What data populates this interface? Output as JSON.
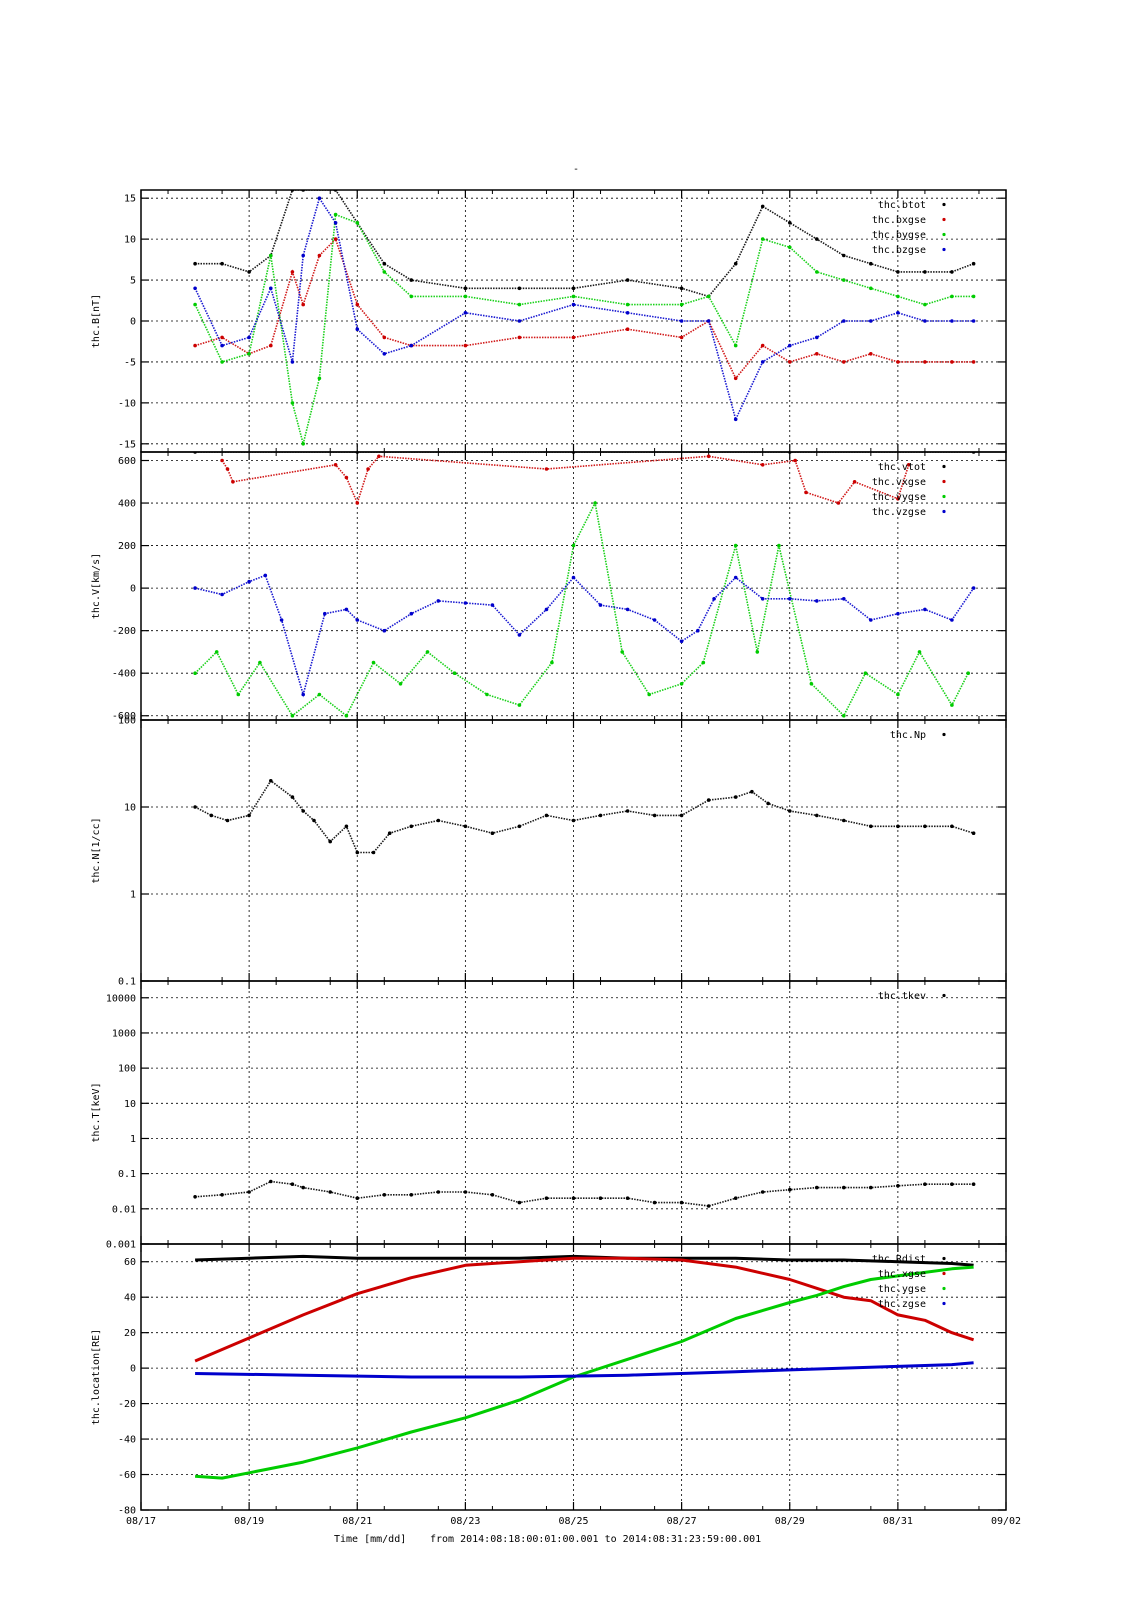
{
  "figure": {
    "title": "-",
    "footer": {
      "time_label": "Time [mm/dd]",
      "range_text": "from 2014:08:18:00:01:00.001  to  2014:08:31:23:59:00.001"
    }
  },
  "colors": {
    "black": "#000000",
    "red": "#cc0000",
    "green": "#00cc00",
    "blue": "#0000cc",
    "grid": "#000000"
  },
  "chart_data": [
    {
      "type": "scatter",
      "ylabel": "thc.B[nT]",
      "scale": "linear",
      "xlim": [
        0,
        16
      ],
      "ylim": [
        -16,
        16
      ],
      "x_ticks": [
        0,
        2,
        4,
        6,
        8,
        10,
        12,
        14,
        16
      ],
      "y_ticks": [
        -15,
        -10,
        -5,
        0,
        5,
        10,
        15
      ],
      "y_tick_labels": [
        "-15",
        "-10",
        "-5",
        "0",
        "5",
        "10",
        "15"
      ],
      "legend": [
        "thc.btot",
        "thc.bxgse",
        "thc.bygse",
        "thc.bzgse"
      ],
      "series": [
        {
          "name": "thc.btot",
          "color": "black",
          "x": [
            1,
            1.5,
            2,
            2.4,
            2.8,
            3,
            3.6,
            4,
            4.5,
            5,
            6,
            7,
            8,
            9,
            10,
            10.5,
            11,
            11.5,
            12,
            12.5,
            13,
            13.5,
            14,
            14.5,
            15,
            15.4
          ],
          "y": [
            7,
            7,
            6,
            8,
            16,
            16,
            16,
            12,
            7,
            5,
            4,
            4,
            4,
            5,
            4,
            3,
            7,
            14,
            12,
            10,
            8,
            7,
            6,
            6,
            6,
            7
          ]
        },
        {
          "name": "thc.bxgse",
          "color": "red",
          "x": [
            1,
            1.5,
            2,
            2.4,
            2.8,
            3,
            3.3,
            3.6,
            4,
            4.5,
            5,
            6,
            7,
            8,
            9,
            10,
            10.5,
            11,
            11.5,
            12,
            12.5,
            13,
            13.5,
            14,
            14.5,
            15,
            15.4
          ],
          "y": [
            -3,
            -2,
            -4,
            -3,
            6,
            2,
            8,
            10,
            2,
            -2,
            -3,
            -3,
            -2,
            -2,
            -1,
            -2,
            0,
            -7,
            -3,
            -5,
            -4,
            -5,
            -4,
            -5,
            -5,
            -5,
            -5
          ]
        },
        {
          "name": "thc.bygse",
          "color": "green",
          "x": [
            1,
            1.5,
            2,
            2.4,
            2.8,
            3,
            3.3,
            3.6,
            4,
            4.5,
            5,
            6,
            7,
            8,
            9,
            10,
            10.5,
            11,
            11.5,
            12,
            12.5,
            13,
            13.5,
            14,
            14.5,
            15,
            15.4
          ],
          "y": [
            2,
            -5,
            -4,
            8,
            -10,
            -15,
            -7,
            13,
            12,
            6,
            3,
            3,
            2,
            3,
            2,
            2,
            3,
            -3,
            10,
            9,
            6,
            5,
            4,
            3,
            2,
            3,
            3
          ]
        },
        {
          "name": "thc.bzgse",
          "color": "blue",
          "x": [
            1,
            1.5,
            2,
            2.4,
            2.8,
            3,
            3.3,
            3.6,
            4,
            4.5,
            5,
            6,
            7,
            8,
            9,
            10,
            10.5,
            11,
            11.5,
            12,
            12.5,
            13,
            13.5,
            14,
            14.5,
            15,
            15.4
          ],
          "y": [
            4,
            -3,
            -2,
            4,
            -5,
            8,
            15,
            12,
            -1,
            -4,
            -3,
            1,
            0,
            2,
            1,
            0,
            0,
            -12,
            -5,
            -3,
            -2,
            0,
            0,
            1,
            0,
            0,
            0
          ]
        }
      ]
    },
    {
      "type": "scatter",
      "ylabel": "thc.V[km/s]",
      "scale": "linear",
      "xlim": [
        0,
        16
      ],
      "ylim": [
        -620,
        640
      ],
      "x_ticks": [
        0,
        2,
        4,
        6,
        8,
        10,
        12,
        14,
        16
      ],
      "y_ticks": [
        -600,
        -400,
        -200,
        0,
        200,
        400,
        600
      ],
      "y_tick_labels": [
        "-600",
        "-400",
        "-200",
        "0",
        "200",
        "400",
        "600"
      ],
      "legend": [
        "thc.vtot",
        "thc.vxgse",
        "thc.vygse",
        "thc.vzgse"
      ],
      "series": [
        {
          "name": "thc.vtot",
          "color": "black",
          "x": [
            1,
            4,
            8,
            12,
            15.4
          ],
          "y": [
            640,
            640,
            640,
            640,
            640
          ]
        },
        {
          "name": "thc.vxgse",
          "color": "red",
          "x": [
            1.5,
            1.6,
            1.7,
            3.6,
            3.8,
            4.0,
            4.2,
            4.4,
            7.5,
            10.5,
            11.5,
            12.1,
            12.3,
            12.9,
            13.2,
            14.0,
            14.2
          ],
          "y": [
            600,
            560,
            500,
            580,
            520,
            400,
            560,
            620,
            560,
            620,
            580,
            600,
            450,
            400,
            500,
            420,
            580
          ]
        },
        {
          "name": "thc.vygse",
          "color": "green",
          "x": [
            1,
            1.4,
            1.8,
            2.2,
            2.8,
            3.3,
            3.8,
            4.3,
            4.8,
            5.3,
            5.8,
            6.4,
            7,
            7.6,
            8,
            8.4,
            8.9,
            9.4,
            10,
            10.4,
            11,
            11.4,
            11.8,
            12.4,
            13,
            13.4,
            14,
            14.4,
            15,
            15.3
          ],
          "y": [
            -400,
            -300,
            -500,
            -350,
            -600,
            -500,
            -600,
            -350,
            -450,
            -300,
            -400,
            -500,
            -550,
            -350,
            200,
            400,
            -300,
            -500,
            -450,
            -350,
            200,
            -300,
            200,
            -450,
            -600,
            -400,
            -500,
            -300,
            -550,
            -400
          ]
        },
        {
          "name": "thc.vzgse",
          "color": "blue",
          "x": [
            1,
            1.5,
            2,
            2.3,
            2.6,
            3,
            3.4,
            3.8,
            4,
            4.5,
            5,
            5.5,
            6,
            6.5,
            7,
            7.5,
            8,
            8.5,
            9,
            9.5,
            10,
            10.3,
            10.6,
            11,
            11.5,
            12,
            12.5,
            13,
            13.5,
            14,
            14.5,
            15,
            15.4
          ],
          "y": [
            0,
            -30,
            30,
            60,
            -150,
            -500,
            -120,
            -100,
            -150,
            -200,
            -120,
            -60,
            -70,
            -80,
            -220,
            -100,
            50,
            -80,
            -100,
            -150,
            -250,
            -200,
            -50,
            50,
            -50,
            -50,
            -60,
            -50,
            -150,
            -120,
            -100,
            -150,
            0
          ]
        }
      ]
    },
    {
      "type": "scatter",
      "ylabel": "thc.N[1/cc]",
      "scale": "log",
      "xlim": [
        0,
        16
      ],
      "ylim": [
        0.1,
        100
      ],
      "x_ticks": [
        0,
        2,
        4,
        6,
        8,
        10,
        12,
        14,
        16
      ],
      "y_ticks": [
        0.1,
        1,
        10,
        100
      ],
      "y_tick_labels": [
        "0.1",
        "1",
        "10",
        "100"
      ],
      "legend": [
        "thc.Np"
      ],
      "series": [
        {
          "name": "thc.Np",
          "color": "black",
          "x": [
            1,
            1.3,
            1.6,
            2,
            2.4,
            2.8,
            3,
            3.2,
            3.5,
            3.8,
            4,
            4.3,
            4.6,
            5,
            5.5,
            6,
            6.5,
            7,
            7.5,
            8,
            8.5,
            9,
            9.5,
            10,
            10.5,
            11,
            11.3,
            11.6,
            12,
            12.5,
            13,
            13.5,
            14,
            14.5,
            15,
            15.4
          ],
          "y": [
            10,
            8,
            7,
            8,
            20,
            13,
            9,
            7,
            4,
            6,
            3,
            3,
            5,
            6,
            7,
            6,
            5,
            6,
            8,
            7,
            8,
            9,
            8,
            8,
            12,
            13,
            15,
            11,
            9,
            8,
            7,
            6,
            6,
            6,
            6,
            5
          ]
        }
      ]
    },
    {
      "type": "scatter",
      "ylabel": "thc.T[keV]",
      "scale": "log",
      "xlim": [
        0,
        16
      ],
      "ylim": [
        0.001,
        30000
      ],
      "x_ticks": [
        0,
        2,
        4,
        6,
        8,
        10,
        12,
        14,
        16
      ],
      "y_ticks": [
        0.001,
        0.01,
        0.1,
        1,
        10,
        100,
        1000,
        10000
      ],
      "y_tick_labels": [
        "0.001",
        "0.01",
        "0.1",
        "1",
        "10",
        "100",
        "1000",
        "10000"
      ],
      "legend": [
        "thc.tkev"
      ],
      "series": [
        {
          "name": "thc.tkev",
          "color": "black",
          "x": [
            1,
            1.5,
            2,
            2.4,
            2.8,
            3,
            3.5,
            4,
            4.5,
            5,
            5.5,
            6,
            6.5,
            7,
            7.5,
            8,
            8.5,
            9,
            9.5,
            10,
            10.5,
            11,
            11.5,
            12,
            12.5,
            13,
            13.5,
            14,
            14.5,
            15,
            15.4
          ],
          "y": [
            0.022,
            0.025,
            0.03,
            0.06,
            0.05,
            0.04,
            0.03,
            0.02,
            0.025,
            0.025,
            0.03,
            0.03,
            0.025,
            0.015,
            0.02,
            0.02,
            0.02,
            0.02,
            0.015,
            0.015,
            0.012,
            0.02,
            0.03,
            0.035,
            0.04,
            0.04,
            0.04,
            0.045,
            0.05,
            0.05,
            0.05
          ]
        }
      ]
    },
    {
      "type": "line",
      "ylabel": "thc.location[RE]",
      "scale": "linear",
      "xlim": [
        0,
        16
      ],
      "ylim": [
        -80,
        70
      ],
      "x_ticks": [
        0,
        2,
        4,
        6,
        8,
        10,
        12,
        14,
        16
      ],
      "x_tick_labels": [
        "08/17",
        "08/19",
        "08/21",
        "08/23",
        "08/25",
        "08/27",
        "08/29",
        "08/31",
        "09/02"
      ],
      "y_ticks": [
        -80,
        -60,
        -40,
        -20,
        0,
        20,
        40,
        60
      ],
      "y_tick_labels": [
        "-80",
        "-60",
        "-40",
        "-20",
        "0",
        "20",
        "40",
        "60"
      ],
      "legend": [
        "thc.Rdist",
        "thc.xgse",
        "thc.ygse",
        "thc.zgse"
      ],
      "series": [
        {
          "name": "thc.Rdist",
          "color": "black",
          "x": [
            1,
            2,
            3,
            4,
            5,
            6,
            7,
            8,
            9,
            10,
            11,
            12,
            13,
            14,
            15,
            15.4
          ],
          "y": [
            61,
            62,
            63,
            62,
            62,
            62,
            62,
            63,
            62,
            62,
            62,
            61,
            61,
            60,
            59,
            58
          ]
        },
        {
          "name": "thc.xgse",
          "color": "red",
          "x": [
            1,
            2,
            3,
            4,
            5,
            6,
            7,
            8,
            9,
            10,
            11,
            12,
            12.5,
            13,
            13.5,
            14,
            14.5,
            15,
            15.4
          ],
          "y": [
            4,
            17,
            30,
            42,
            51,
            58,
            60,
            62,
            62,
            61,
            57,
            50,
            45,
            40,
            38,
            30,
            27,
            20,
            16
          ]
        },
        {
          "name": "thc.ygse",
          "color": "green",
          "x": [
            1,
            1.5,
            2,
            3,
            4,
            5,
            6,
            7,
            8,
            9,
            10,
            11,
            12,
            12.5,
            13,
            13.5,
            14,
            14.5,
            15,
            15.4
          ],
          "y": [
            -61,
            -62,
            -59,
            -53,
            -45,
            -36,
            -28,
            -18,
            -5,
            5,
            15,
            28,
            37,
            41,
            46,
            50,
            52,
            54,
            56,
            57
          ]
        },
        {
          "name": "thc.zgse",
          "color": "blue",
          "x": [
            1,
            3,
            5,
            7,
            9,
            11,
            12,
            13,
            14,
            15,
            15.4
          ],
          "y": [
            -3,
            -4,
            -5,
            -5,
            -4,
            -2,
            -1,
            0,
            1,
            2,
            3
          ]
        }
      ]
    }
  ]
}
